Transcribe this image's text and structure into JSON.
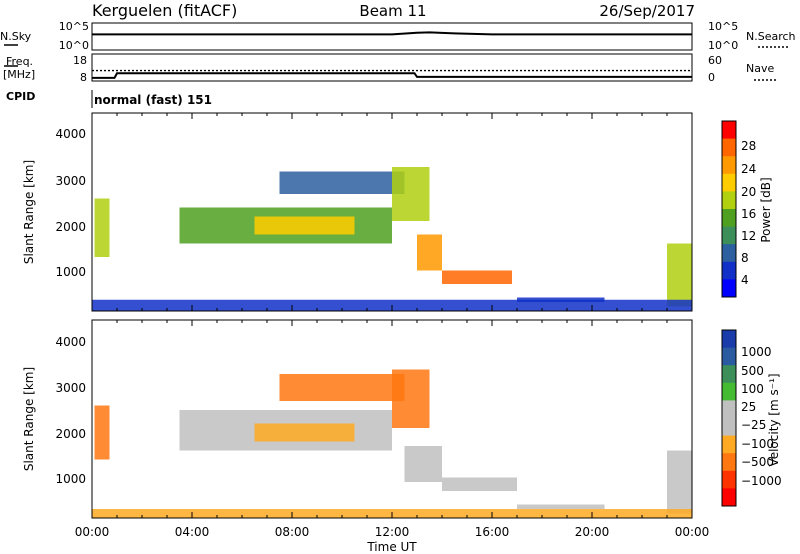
{
  "header": {
    "station": "Kerguelen (fitACF)",
    "beam": "Beam 11",
    "date": "26/Sep/2017"
  },
  "summary_panel": {
    "nsky_label": "N.Sky",
    "nsky_ticks": [
      "10^5",
      "10^0"
    ],
    "nsearch_label": "N.Search",
    "nsearch_ticks": [
      "10^5",
      "10^0"
    ],
    "freq_label": "Freq.",
    "freq_unit": "[MHz]",
    "freq_ticks": [
      "18",
      "8"
    ],
    "nave_label": "Nave",
    "nave_ticks": [
      "60",
      "0"
    ],
    "cpid_label": "CPID",
    "cpid_value": "normal (fast) 151"
  },
  "power_panel": {
    "ylabel": "Slant Range [km]",
    "yticks": [
      "4000",
      "3000",
      "2000",
      "1000"
    ],
    "colorbar_label": "Power [dB]",
    "colorbar_ticks": [
      "28",
      "24",
      "20",
      "16",
      "12",
      "8",
      "4"
    ],
    "colorbar_colors": [
      "#ff0000",
      "#ff6600",
      "#ff9900",
      "#ffcc00",
      "#b0d010",
      "#4fa020",
      "#3d8f5a",
      "#2b5fa0",
      "#1030c8",
      "#0000ff"
    ]
  },
  "velocity_panel": {
    "ylabel": "Slant Range [km]",
    "yticks": [
      "4000",
      "3000",
      "2000",
      "1000"
    ],
    "colorbar_label": "Velocity [m s⁻¹]",
    "colorbar_ticks": [
      "1000",
      "500",
      "100",
      "25",
      "−25",
      "−100",
      "−500",
      "−1000"
    ],
    "colorbar_colors": [
      "#1a3caa",
      "#2a5a9f",
      "#3d8f5a",
      "#44bb33",
      "#c0c0c0",
      "#c0c0c0",
      "#ffaa22",
      "#ff7711",
      "#ff3300",
      "#ff0000"
    ]
  },
  "xaxis": {
    "label": "Time UT",
    "ticks": [
      "00:00",
      "04:00",
      "08:00",
      "12:00",
      "16:00",
      "20:00",
      "00:00"
    ]
  },
  "chart_data": [
    {
      "type": "line",
      "title": "Kerguelen (fitACF)  Beam 11  26/Sep/2017",
      "series": [
        {
          "name": "N.Sky",
          "x": [
            0,
            1,
            4,
            8,
            12,
            13,
            13.5,
            14.5,
            16,
            20,
            24
          ],
          "values": [
            10000,
            10000,
            10000,
            10000,
            10000,
            30000,
            40000,
            20000,
            10000,
            10000,
            10000
          ]
        },
        {
          "name": "Freq.",
          "x": [
            0,
            0.9,
            1.0,
            12.9,
            13.0,
            24
          ],
          "values": [
            8.5,
            8.5,
            10.5,
            10.5,
            8.9,
            8.9
          ]
        },
        {
          "name": "Nave",
          "x": [
            0,
            24
          ],
          "values": [
            22,
            22
          ]
        }
      ],
      "xlim": [
        0,
        24
      ]
    },
    {
      "type": "heatmap",
      "title": "Power [dB]",
      "xlabel": "Time UT",
      "ylabel": "Slant Range [km]",
      "xlim": [
        0,
        24
      ],
      "ylim": [
        200,
        4600
      ],
      "colorbar": [
        4,
        28
      ],
      "regions": [
        {
          "t0": 0.1,
          "t1": 0.7,
          "r0": 1400,
          "r1": 2700,
          "value": 18
        },
        {
          "t0": 3.5,
          "t1": 12.0,
          "r0": 1700,
          "r1": 2500,
          "value": 14
        },
        {
          "t0": 6.5,
          "t1": 10.5,
          "r0": 1900,
          "r1": 2300,
          "value": 20
        },
        {
          "t0": 7.5,
          "t1": 12.5,
          "r0": 2800,
          "r1": 3300,
          "value": 10
        },
        {
          "t0": 12.0,
          "t1": 13.5,
          "r0": 2200,
          "r1": 3400,
          "value": 18
        },
        {
          "t0": 13.0,
          "t1": 14.0,
          "r0": 1100,
          "r1": 1900,
          "value": 22
        },
        {
          "t0": 14.0,
          "t1": 16.8,
          "r0": 800,
          "r1": 1100,
          "value": 24
        },
        {
          "t0": 17.0,
          "t1": 20.5,
          "r0": 400,
          "r1": 500,
          "value": 8
        },
        {
          "t0": 23.0,
          "t1": 24.0,
          "r0": 300,
          "r1": 1700,
          "value": 18
        },
        {
          "t0": 0.0,
          "t1": 24.0,
          "r0": 200,
          "r1": 450,
          "value": 8
        }
      ]
    },
    {
      "type": "heatmap",
      "title": "Velocity [m s⁻¹]",
      "xlabel": "Time UT",
      "ylabel": "Slant Range [km]",
      "xlim": [
        0,
        24
      ],
      "ylim": [
        200,
        4600
      ],
      "colorbar": [
        -1000,
        1000
      ],
      "regions": [
        {
          "t0": 0.1,
          "t1": 0.7,
          "r0": 1500,
          "r1": 2700,
          "value": -300
        },
        {
          "t0": 3.5,
          "t1": 12.0,
          "r0": 1700,
          "r1": 2600,
          "value": 0
        },
        {
          "t0": 6.5,
          "t1": 10.5,
          "r0": 1900,
          "r1": 2300,
          "value": -50
        },
        {
          "t0": 7.5,
          "t1": 12.5,
          "r0": 2800,
          "r1": 3400,
          "value": -150
        },
        {
          "t0": 12.0,
          "t1": 13.5,
          "r0": 2200,
          "r1": 3500,
          "value": -150
        },
        {
          "t0": 12.5,
          "t1": 14.0,
          "r0": 1000,
          "r1": 1800,
          "value": 0
        },
        {
          "t0": 14.0,
          "t1": 17.0,
          "r0": 800,
          "r1": 1100,
          "value": 0
        },
        {
          "t0": 17.0,
          "t1": 20.5,
          "r0": 400,
          "r1": 500,
          "value": 0
        },
        {
          "t0": 23.0,
          "t1": 24.0,
          "r0": 300,
          "r1": 1700,
          "value": 0
        },
        {
          "t0": 0.0,
          "t1": 24.0,
          "r0": 200,
          "r1": 400,
          "value": -60
        }
      ]
    }
  ]
}
